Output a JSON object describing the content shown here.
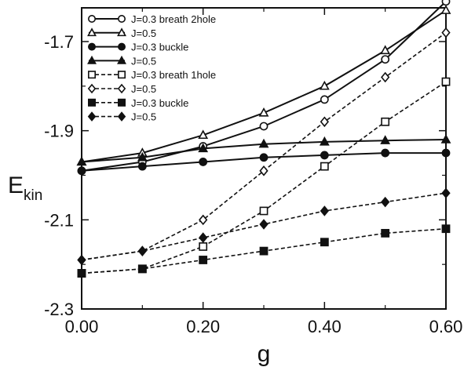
{
  "chart_data": {
    "type": "line",
    "xlabel": "g",
    "ylabel": "E",
    "ylabel_sub": "kin",
    "xlim": [
      0.0,
      0.6
    ],
    "ylim": [
      -2.3,
      -1.6
    ],
    "xticks": [
      "0.00",
      "0.20",
      "0.40",
      "0.60"
    ],
    "xticks_values": [
      0.0,
      0.2,
      0.4,
      0.6
    ],
    "yticks": [
      "-1.7",
      "-1.9",
      "-2.1",
      "-2.3"
    ],
    "yticks_values": [
      -1.7,
      -1.9,
      -2.1,
      -2.3
    ],
    "grid": false,
    "legend_position": "top-left",
    "x": [
      0.0,
      0.1,
      0.2,
      0.3,
      0.4,
      0.5,
      0.6
    ],
    "series": [
      {
        "name": "J=0.3 breath 2hole",
        "marker": "circle-open",
        "dash": false,
        "values": [
          -1.99,
          -1.97,
          -1.935,
          -1.89,
          -1.83,
          -1.74,
          -1.61
        ]
      },
      {
        "name": "J=0.5",
        "marker": "triangle-open",
        "dash": false,
        "values": [
          -1.97,
          -1.95,
          -1.91,
          -1.86,
          -1.8,
          -1.72,
          -1.63
        ]
      },
      {
        "name": "J=0.3 buckle",
        "marker": "circle-filled",
        "dash": false,
        "values": [
          -1.99,
          -1.98,
          -1.97,
          -1.96,
          -1.955,
          -1.95,
          -1.95
        ]
      },
      {
        "name": "J=0.5",
        "marker": "triangle-filled",
        "dash": false,
        "values": [
          -1.97,
          -1.96,
          -1.94,
          -1.93,
          -1.925,
          -1.922,
          -1.92
        ]
      },
      {
        "name": "J=0.3 breath 1hole",
        "marker": "square-open",
        "dash": true,
        "values": [
          -2.22,
          -2.21,
          -2.16,
          -2.08,
          -1.98,
          -1.88,
          -1.79
        ]
      },
      {
        "name": "J=0.5",
        "marker": "diamond-open",
        "dash": true,
        "values": [
          -2.19,
          -2.17,
          -2.1,
          -1.99,
          -1.88,
          -1.78,
          -1.68
        ]
      },
      {
        "name": "J=0.3 buckle",
        "marker": "square-filled",
        "dash": true,
        "values": [
          -2.22,
          -2.21,
          -2.19,
          -2.17,
          -2.15,
          -2.13,
          -2.12
        ]
      },
      {
        "name": "J=0.5",
        "marker": "diamond-filled",
        "dash": true,
        "values": [
          -2.19,
          -2.17,
          -2.14,
          -2.11,
          -2.08,
          -2.06,
          -2.04
        ]
      }
    ]
  }
}
